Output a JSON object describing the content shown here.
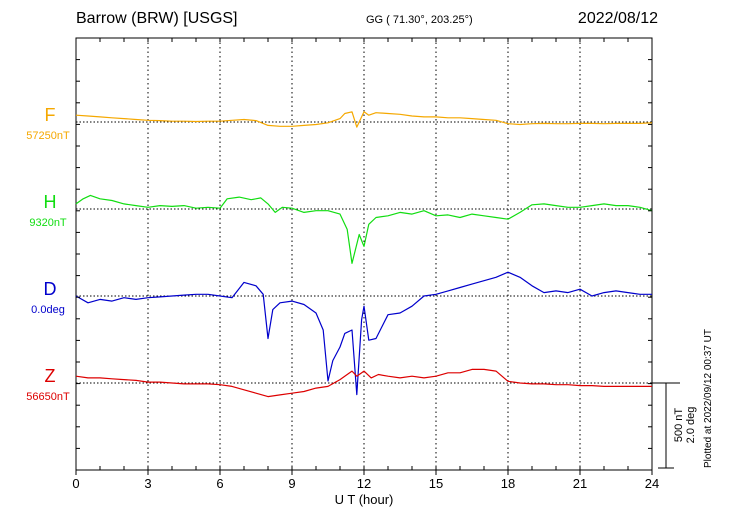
{
  "header": {
    "station": "Barrow (BRW)  [USGS]",
    "coords": "GG ( 71.30°, 203.25°)",
    "date": "2022/08/12"
  },
  "footer_note": "Plotted at 2022/09/12 00:37 UT",
  "scale_bar": {
    "line1": "500 nT",
    "line2": "2.0 deg"
  },
  "chart_data": {
    "type": "line",
    "xlabel": "U T (hour)",
    "xlim": [
      0,
      24
    ],
    "xticks": [
      "0",
      "3",
      "6",
      "9",
      "12",
      "15",
      "18",
      "21",
      "24"
    ],
    "ylabel": "",
    "grid": true,
    "units_note": "offsets from baseline, scale: 500 nT per bar",
    "series": [
      {
        "name": "F",
        "baseline_label": "57250nT",
        "color": "#f5a800",
        "x": [
          0,
          0.5,
          1,
          1.5,
          2,
          2.5,
          3,
          3.5,
          4,
          4.5,
          5,
          5.5,
          6,
          6.5,
          7,
          7.5,
          8,
          8.5,
          9,
          9.5,
          10,
          10.5,
          11,
          11.2,
          11.5,
          11.7,
          12,
          12.2,
          12.5,
          13,
          13.5,
          14,
          14.5,
          15,
          15.5,
          16,
          16.5,
          17,
          17.5,
          18,
          18.5,
          19,
          19.5,
          20,
          20.5,
          21,
          21.5,
          22,
          22.5,
          23,
          23.5,
          24
        ],
        "y": [
          40,
          35,
          30,
          25,
          20,
          15,
          10,
          8,
          5,
          5,
          3,
          5,
          5,
          10,
          15,
          8,
          -20,
          -25,
          -25,
          -20,
          -15,
          -5,
          20,
          50,
          60,
          -30,
          60,
          40,
          55,
          50,
          45,
          35,
          30,
          30,
          25,
          25,
          20,
          15,
          10,
          -10,
          -15,
          -10,
          -8,
          -10,
          -10,
          -8,
          -8,
          -10,
          -8,
          -8,
          -8,
          -5
        ]
      },
      {
        "name": "H",
        "baseline_label": "9320nT",
        "color": "#11dd11",
        "x": [
          0,
          0.3,
          0.6,
          1,
          1.5,
          2,
          2.5,
          3,
          3.5,
          4,
          4.5,
          5,
          5.5,
          6,
          6.3,
          6.8,
          7.3,
          7.7,
          8,
          8.3,
          8.6,
          9,
          9.5,
          10,
          10.5,
          11,
          11.3,
          11.5,
          11.8,
          12,
          12.2,
          12.5,
          13,
          13.5,
          14,
          14.5,
          15,
          15.5,
          16,
          16.5,
          17,
          17.5,
          18,
          18.5,
          19,
          19.5,
          20,
          20.5,
          21,
          21.5,
          22,
          22.5,
          23,
          23.5,
          24
        ],
        "y": [
          30,
          60,
          80,
          60,
          50,
          30,
          20,
          10,
          20,
          15,
          20,
          5,
          10,
          5,
          60,
          70,
          55,
          65,
          30,
          -20,
          10,
          5,
          -20,
          -10,
          -10,
          -30,
          -120,
          -320,
          -150,
          -220,
          -90,
          -50,
          -40,
          -20,
          -30,
          -10,
          -40,
          -35,
          -50,
          -30,
          -40,
          -50,
          -60,
          -20,
          25,
          30,
          20,
          10,
          10,
          20,
          30,
          20,
          20,
          10,
          -10
        ]
      },
      {
        "name": "D",
        "baseline_label": "0.0deg",
        "color": "#0000cc",
        "x": [
          0,
          0.5,
          1,
          1.5,
          2,
          2.5,
          3,
          3.5,
          4,
          4.5,
          5,
          5.5,
          6,
          6.5,
          7,
          7.5,
          7.8,
          8,
          8.2,
          8.5,
          9,
          9.5,
          10,
          10.3,
          10.5,
          10.7,
          11,
          11.2,
          11.5,
          11.7,
          11.9,
          12,
          12.2,
          12.5,
          13,
          13.5,
          14,
          14.5,
          15,
          15.5,
          16,
          16.5,
          17,
          17.5,
          18,
          18.5,
          19,
          19.5,
          20,
          20.5,
          21,
          21.5,
          22,
          22.5,
          23,
          23.5,
          24
        ],
        "y": [
          0,
          -40,
          -20,
          -30,
          -10,
          -20,
          -10,
          -5,
          0,
          5,
          10,
          10,
          0,
          -10,
          80,
          60,
          10,
          -250,
          -80,
          -40,
          -30,
          -50,
          -100,
          -200,
          -500,
          -380,
          -300,
          -220,
          -200,
          -580,
          -140,
          -60,
          -260,
          -250,
          -110,
          -100,
          -60,
          0,
          10,
          30,
          50,
          70,
          90,
          110,
          140,
          110,
          60,
          20,
          30,
          20,
          40,
          0,
          20,
          30,
          20,
          10,
          10
        ]
      },
      {
        "name": "Z",
        "baseline_label": "56650nT",
        "color": "#dd0000",
        "x": [
          0,
          0.5,
          1,
          1.5,
          2,
          2.5,
          3,
          3.5,
          4,
          4.5,
          5,
          5.5,
          6,
          6.5,
          7,
          7.5,
          8,
          8.5,
          9,
          9.5,
          10,
          10.5,
          11,
          11.3,
          11.5,
          11.7,
          12,
          12.3,
          12.6,
          13,
          13.5,
          14,
          14.5,
          15,
          15.5,
          16,
          16.5,
          17,
          17.5,
          18,
          18.5,
          19,
          19.5,
          20,
          20.5,
          21,
          21.5,
          22,
          22.5,
          23,
          23.5,
          24
        ],
        "y": [
          40,
          30,
          30,
          25,
          20,
          15,
          5,
          5,
          0,
          -5,
          -5,
          -5,
          -10,
          -20,
          -40,
          -60,
          -80,
          -70,
          -60,
          -50,
          -30,
          -20,
          20,
          50,
          70,
          40,
          70,
          30,
          50,
          40,
          30,
          40,
          30,
          40,
          60,
          60,
          80,
          80,
          70,
          10,
          0,
          -5,
          -5,
          -10,
          -10,
          -15,
          -15,
          -20,
          -20,
          -20,
          -20,
          -20
        ]
      }
    ]
  }
}
